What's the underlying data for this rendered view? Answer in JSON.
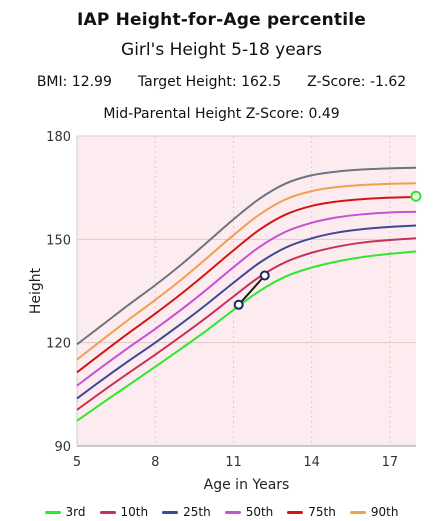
{
  "header": {
    "title": "IAP Height-for-Age percentile",
    "subtitle": "Girl's Height 5-18 years",
    "bmi": "BMI: 12.99",
    "target_height": "Target Height: 162.5",
    "z_score": "Z-Score: -1.62",
    "mid_parental": "Mid-Parental Height Z-Score: 0.49"
  },
  "chart_data": {
    "type": "line",
    "title": "IAP Height-for-Age percentile",
    "subtitle": "Girl's Height 5-18 years",
    "xlabel": "Age in Years",
    "ylabel": "Height",
    "xlim": [
      5,
      18
    ],
    "ylim": [
      90,
      180
    ],
    "xticks": [
      5,
      8,
      11,
      14,
      17
    ],
    "yticks": [
      90,
      120,
      150,
      180
    ],
    "x": [
      5,
      6,
      7,
      8,
      9,
      10,
      11,
      12,
      13,
      14,
      15,
      16,
      17,
      18
    ],
    "series": [
      {
        "name": "3rd",
        "color": "#2ee82e",
        "values": [
          97.3,
          102.6,
          107.8,
          113.0,
          118.3,
          123.7,
          129.5,
          135.0,
          139.2,
          141.8,
          143.6,
          144.9,
          145.8,
          146.5
        ]
      },
      {
        "name": "10th",
        "color": "#c8325a",
        "values": [
          100.5,
          106.0,
          111.3,
          116.5,
          121.9,
          127.5,
          133.4,
          139.1,
          143.4,
          146.1,
          147.9,
          149.1,
          149.8,
          150.3
        ]
      },
      {
        "name": "25th",
        "color": "#3c4a96",
        "values": [
          103.8,
          109.4,
          114.8,
          120.0,
          125.5,
          131.3,
          137.4,
          143.2,
          147.6,
          150.3,
          152.0,
          153.0,
          153.6,
          154.0
        ]
      },
      {
        "name": "50th",
        "color": "#c84fd8",
        "values": [
          107.5,
          113.2,
          118.7,
          124.0,
          129.6,
          135.6,
          141.9,
          147.8,
          152.2,
          154.8,
          156.4,
          157.3,
          157.8,
          158.0
        ]
      },
      {
        "name": "75th",
        "color": "#d21515",
        "values": [
          111.4,
          117.2,
          122.9,
          128.4,
          134.2,
          140.4,
          146.8,
          152.8,
          157.2,
          159.7,
          161.0,
          161.7,
          162.1,
          162.3
        ]
      },
      {
        "name": "90th",
        "color": "#f0a050",
        "values": [
          115.1,
          121.0,
          126.8,
          132.4,
          138.3,
          144.7,
          151.2,
          157.2,
          161.6,
          164.0,
          165.2,
          165.8,
          166.1,
          166.3
        ]
      },
      {
        "name": "",
        "color": "#6e7380",
        "values": [
          119.5,
          125.3,
          131.1,
          136.7,
          142.7,
          149.2,
          155.8,
          161.8,
          166.2,
          168.6,
          169.7,
          170.3,
          170.6,
          170.8
        ]
      }
    ],
    "patient_points": [
      {
        "x": 11.2,
        "y": 131
      },
      {
        "x": 12.2,
        "y": 139.5
      }
    ],
    "target_point": {
      "x": 18,
      "y": 162.5
    },
    "grid": true,
    "legend_position": "bottom",
    "colors": {
      "plot_background": "#fdecef",
      "grid": "#e3c7cd",
      "patient_line": "#1a1a1a",
      "patient_fill": "#ffffff",
      "patient_stroke": "#1a2a5a",
      "target_fill": "#ffffff",
      "target_stroke": "#2ee82e"
    }
  }
}
